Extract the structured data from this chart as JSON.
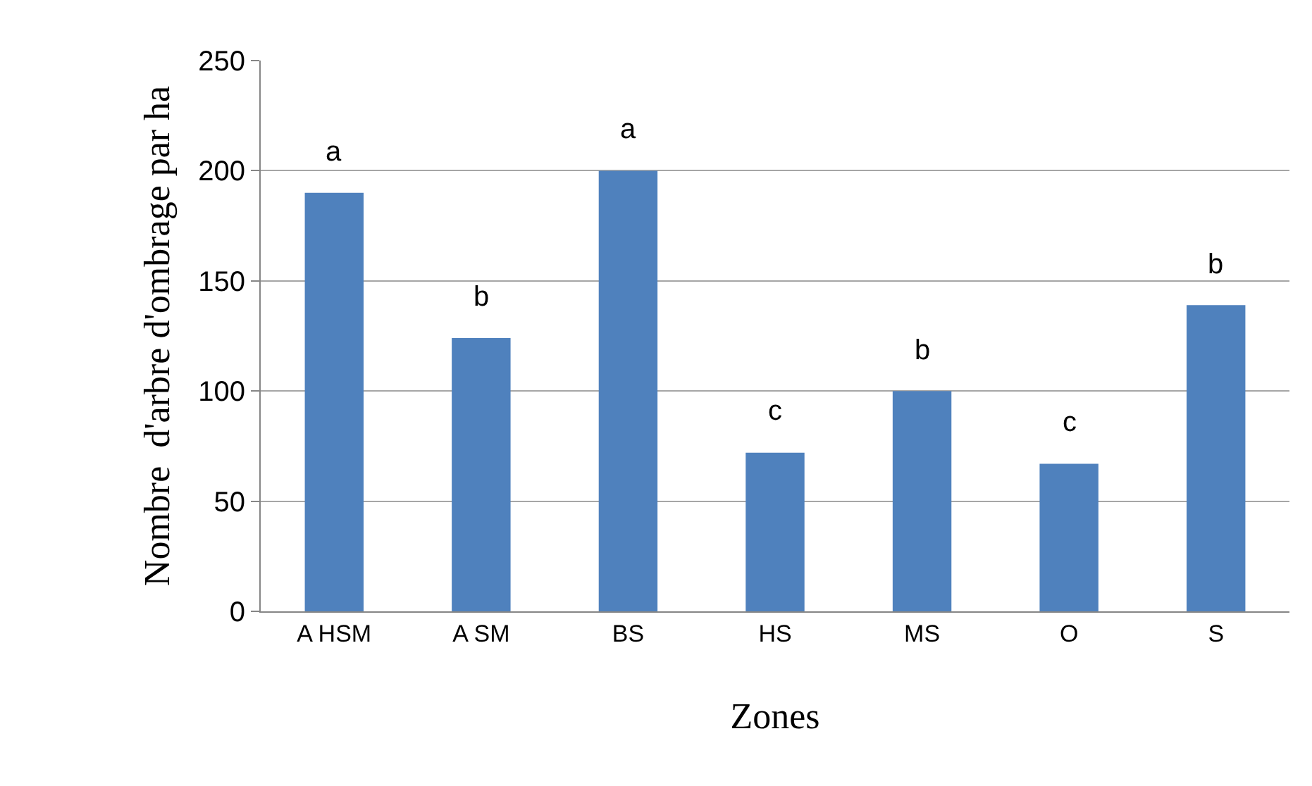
{
  "chart_data": {
    "type": "bar",
    "xlabel": "Zones",
    "ylabel": "Nombre  d'arbre d'ombrage par ha",
    "categories": [
      "A HSM",
      "A SM",
      "BS",
      "HS",
      "MS",
      "O",
      "S"
    ],
    "values": [
      190,
      124,
      200,
      72,
      100,
      67,
      139
    ],
    "color": "#4f81bd",
    "ylim": [
      0,
      250
    ],
    "yticks": [
      0,
      50,
      100,
      150,
      200,
      250
    ],
    "grid": "y",
    "annotations": [
      {
        "text": "a",
        "x": "A HSM",
        "y": 190
      },
      {
        "text": "b",
        "x": "A SM",
        "y": 124
      },
      {
        "text": "a",
        "x": "BS",
        "y": 200
      },
      {
        "text": "c",
        "x": "HS",
        "y": 72
      },
      {
        "text": "b",
        "x": "MS",
        "y": 100
      },
      {
        "text": "c",
        "x": "O",
        "y": 67
      },
      {
        "text": "b",
        "x": "S",
        "y": 139
      }
    ]
  }
}
